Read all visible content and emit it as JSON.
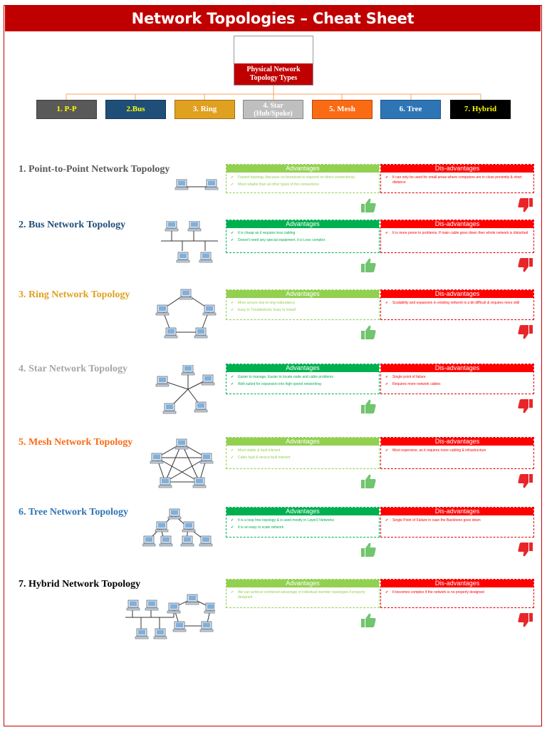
{
  "header": {
    "title": "Network Topologies – Cheat Sheet"
  },
  "root": {
    "label": "Physical Network\nTopology Types"
  },
  "categories": [
    {
      "label": "1. P-P",
      "bg": "#595959",
      "fg": "#ffff00"
    },
    {
      "label": "2.Bus",
      "bg": "#1f4e79",
      "fg": "#ffff00"
    },
    {
      "label": "3. Ring",
      "bg": "#e0a020",
      "fg": "#ffffff"
    },
    {
      "label": "4. Star\n(Hub/Spoke)",
      "bg": "#bfbfbf",
      "fg": "#ffffff"
    },
    {
      "label": "5. Mesh",
      "bg": "#fa6b14",
      "fg": "#ffffff"
    },
    {
      "label": "6. Tree",
      "bg": "#2e75b6",
      "fg": "#ffffff"
    },
    {
      "label": "7. Hybrid",
      "bg": "#000000",
      "fg": "#ffff00"
    }
  ],
  "labels": {
    "advantages": "Advantages",
    "disadvantages": "Dis-advantages"
  },
  "colors": {
    "adv_light": "#92d050",
    "adv_dark": "#00b050",
    "dis": "#ff0000",
    "thumb_up": "#70c56e",
    "thumb_down": "#e8262a"
  },
  "topologies": [
    {
      "title": "1. Point-to-Point Network Topology",
      "color": "#595959",
      "adv_style": "light",
      "adv": [
        "Fastest topology (because no broadcast is required on direct connections)",
        "Most reliable than all other types of the connections"
      ],
      "dis": [
        "It can only be used for small areas where computers are in close proximity & short distance"
      ]
    },
    {
      "title": "2. Bus Network Topology",
      "color": "#1f4e79",
      "adv_style": "dark",
      "adv": [
        "It is cheap as it requires less cabling",
        "Doesn't need any special equipment, it is Less complex"
      ],
      "dis": [
        "It is more prone to problems. If main cable goes down then whole network is disturbed"
      ]
    },
    {
      "title": "3. Ring Network Topology",
      "color": "#e0a020",
      "adv_style": "light",
      "adv": [
        "More secure due to ring redundancy",
        "Easy to Troubleshoot, Easy to Install"
      ],
      "dis": [
        "Scalability and expansion in existing network is a bit difficult & requires more skill"
      ]
    },
    {
      "title": "4. Star Network Topology",
      "color": "#a6a6a6",
      "adv_style": "dark",
      "adv": [
        "Easier to manage, Easier to locate node and cable problems",
        "Well suited for expansion into high-speed networking"
      ],
      "dis": [
        "Single point of failure",
        "Requires more network cables"
      ]
    },
    {
      "title": "5. Mesh Network Topology",
      "color": "#fa6b14",
      "adv_style": "light",
      "adv": [
        "Most stable & fault tolerant",
        "Cable fault & device fault tolerant"
      ],
      "dis": [
        "Most expensive, as it requires more cabling & infrastructure"
      ]
    },
    {
      "title": "6. Tree Network Topology",
      "color": "#2e75b6",
      "adv_style": "dark",
      "adv": [
        "It is a loop free topology & is used mostly in Layer2 Networks",
        "It is an easy to scale network"
      ],
      "dis": [
        "Single Point of Failure in case the Backbone goes down"
      ]
    },
    {
      "title": "7. Hybrid Network Topology",
      "color": "#000000",
      "adv_style": "light",
      "adv": [
        "We can achieve combined advantage of individual member topologies if properly designed"
      ],
      "dis": [
        "It becomes complex if the network is no properly designed"
      ]
    }
  ]
}
